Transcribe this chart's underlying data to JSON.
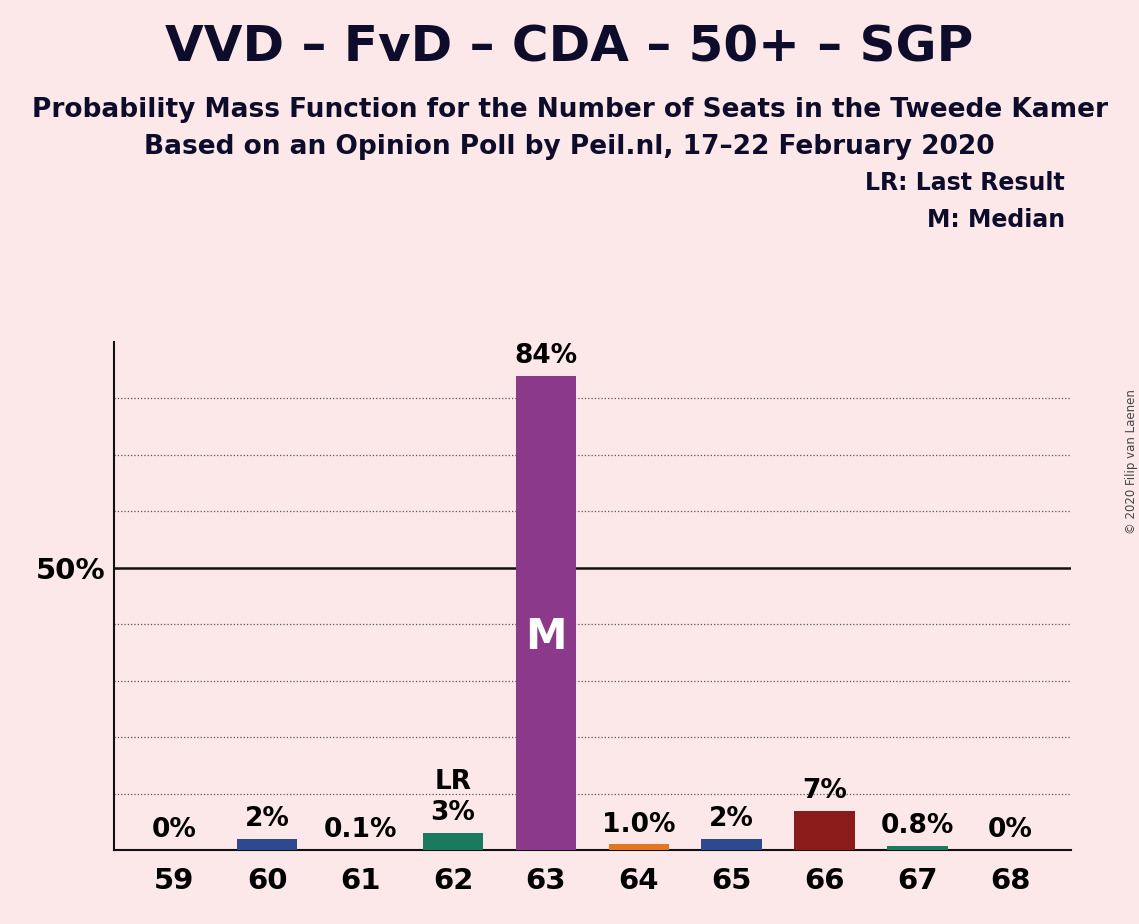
{
  "title": "VVD – FvD – CDA – 50+ – SGP",
  "subtitle1": "Probability Mass Function for the Number of Seats in the Tweede Kamer",
  "subtitle2": "Based on an Opinion Poll by Peil.nl, 17–22 February 2020",
  "copyright": "© 2020 Filip van Laenen",
  "background_color": "#fce8e8",
  "categories": [
    59,
    60,
    61,
    62,
    63,
    64,
    65,
    66,
    67,
    68
  ],
  "values": [
    0.0,
    2.0,
    0.1,
    3.0,
    84.0,
    1.0,
    2.0,
    7.0,
    0.8,
    0.0
  ],
  "labels": [
    "0%",
    "2%",
    "0.1%",
    "3%",
    "84%",
    "1.0%",
    "2%",
    "7%",
    "0.8%",
    "0%"
  ],
  "colors": [
    "#2e4a8e",
    "#2e4a8e",
    "#2e4a8e",
    "#1a7a5e",
    "#8b3a8b",
    "#e07820",
    "#2e4a8e",
    "#8b1a1a",
    "#1a7a5e",
    "#2e4a8e"
  ],
  "median_bar": 63,
  "lr_bar": 62,
  "ylim": [
    0,
    90
  ],
  "ylabel_50": "50%",
  "legend_lr": "LR: Last Result",
  "legend_m": "M: Median",
  "title_fontsize": 36,
  "subtitle_fontsize": 19,
  "label_fontsize": 19,
  "tick_fontsize": 21,
  "dotted_grid": [
    10,
    20,
    30,
    40,
    60,
    70,
    80
  ],
  "bar_width": 0.65
}
